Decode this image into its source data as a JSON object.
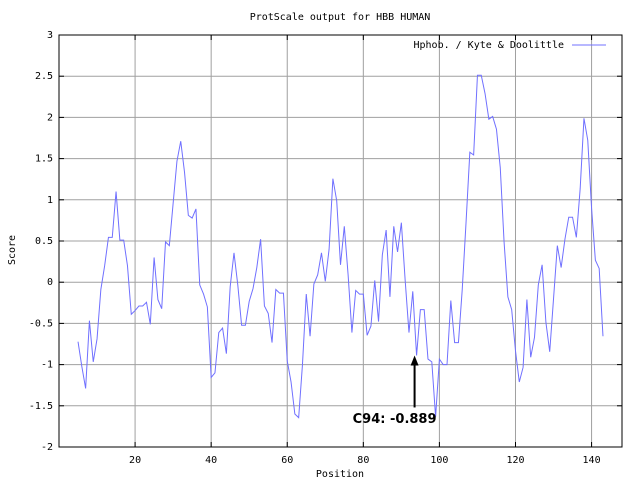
{
  "chart_data": {
    "type": "line",
    "title": "ProtScale output for HBB HUMAN",
    "x_label": "Position",
    "y_label": "Score",
    "xlim": [
      0,
      148
    ],
    "ylim": [
      -2,
      3
    ],
    "xticks": [
      20,
      40,
      60,
      80,
      100,
      120,
      140
    ],
    "yticks": [
      -2,
      -1.5,
      -1,
      -0.5,
      0,
      0.5,
      1,
      1.5,
      2,
      2.5,
      3
    ],
    "grid": true,
    "legend": "upper right",
    "x": [
      5,
      6,
      7,
      8,
      9,
      10,
      11,
      12,
      13,
      14,
      15,
      16,
      17,
      18,
      19,
      20,
      21,
      22,
      23,
      24,
      25,
      26,
      27,
      28,
      29,
      30,
      31,
      32,
      33,
      34,
      35,
      36,
      37,
      38,
      39,
      40,
      41,
      42,
      43,
      44,
      45,
      46,
      47,
      48,
      49,
      50,
      51,
      52,
      53,
      54,
      55,
      56,
      57,
      58,
      59,
      60,
      61,
      62,
      63,
      64,
      65,
      66,
      67,
      68,
      69,
      70,
      71,
      72,
      73,
      74,
      75,
      76,
      77,
      78,
      79,
      80,
      81,
      82,
      83,
      84,
      85,
      86,
      87,
      88,
      89,
      90,
      91,
      92,
      93,
      94,
      95,
      96,
      97,
      98,
      99,
      100,
      101,
      102,
      103,
      104,
      105,
      106,
      107,
      108,
      109,
      110,
      111,
      112,
      113,
      114,
      115,
      116,
      117,
      118,
      119,
      120,
      121,
      122,
      123,
      124,
      125,
      126,
      127,
      128,
      129,
      130,
      131,
      132,
      133,
      134,
      135,
      136,
      137,
      138,
      139,
      140,
      141,
      142,
      143
    ],
    "series": [
      {
        "name": "Hphob. / Kyte & Doolittle",
        "color": "#7070ff",
        "values": [
          -0.722,
          -1.022,
          -1.289,
          -0.467,
          -0.967,
          -0.689,
          -0.089,
          0.2,
          0.544,
          0.544,
          1.1,
          0.511,
          0.511,
          0.2,
          -0.389,
          -0.344,
          -0.289,
          -0.289,
          -0.244,
          -0.511,
          0.3,
          -0.211,
          -0.322,
          0.489,
          0.444,
          0.956,
          1.467,
          1.711,
          1.333,
          0.811,
          0.778,
          0.889,
          -0.033,
          -0.144,
          -0.3,
          -1.156,
          -1.1,
          -0.611,
          -0.556,
          -0.867,
          -0.056,
          0.356,
          -0.033,
          -0.522,
          -0.522,
          -0.233,
          -0.078,
          0.178,
          0.522,
          -0.289,
          -0.378,
          -0.733,
          -0.089,
          -0.133,
          -0.133,
          -0.956,
          -1.211,
          -1.6,
          -1.644,
          -1.0,
          -0.144,
          -0.656,
          -0.022,
          0.089,
          0.356,
          0.011,
          0.4,
          1.256,
          0.989,
          0.211,
          0.678,
          0.089,
          -0.611,
          -0.1,
          -0.144,
          -0.144,
          -0.644,
          -0.533,
          0.022,
          -0.478,
          0.333,
          0.633,
          -0.178,
          0.678,
          0.367,
          0.722,
          0.022,
          -0.611,
          -0.111,
          -0.889,
          -0.333,
          -0.333,
          -0.933,
          -0.967,
          -1.633,
          -0.933,
          -1.0,
          -1.0,
          -0.222,
          -0.733,
          -0.733,
          -0.089,
          0.722,
          1.578,
          1.544,
          2.511,
          2.511,
          2.289,
          1.978,
          2.011,
          1.856,
          1.389,
          0.489,
          -0.178,
          -0.333,
          -0.833,
          -1.211,
          -1.033,
          -0.211,
          -0.911,
          -0.667,
          -0.033,
          0.211,
          -0.489,
          -0.844,
          -0.2,
          0.444,
          0.178,
          0.522,
          0.789,
          0.789,
          0.544,
          1.133,
          1.989,
          1.722,
          0.9,
          0.267,
          0.167,
          -0.656
        ]
      }
    ],
    "annotations": [
      {
        "text": "C94: -0.889",
        "x": 94,
        "y": -0.889
      }
    ]
  }
}
